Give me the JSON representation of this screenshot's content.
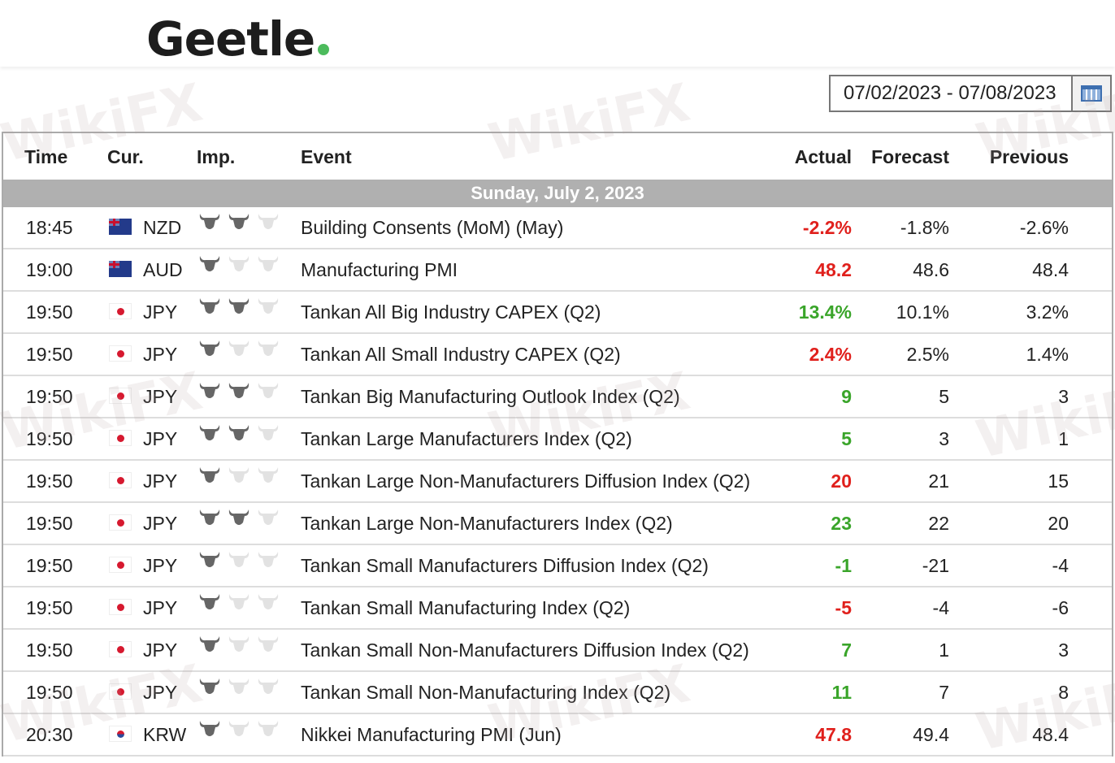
{
  "brand": {
    "name": "Geetle",
    "accent": "#4cbb5c"
  },
  "watermark": "WikiFX",
  "date_range": {
    "value": "07/02/2023 - 07/08/2023",
    "icon": "calendar-icon"
  },
  "columns": {
    "time": "Time",
    "currency": "Cur.",
    "importance": "Imp.",
    "event": "Event",
    "actual": "Actual",
    "forecast": "Forecast",
    "previous": "Previous"
  },
  "colors": {
    "negative": "#e0201c",
    "positive": "#3aa52a",
    "bull_on": "#666666",
    "bull_off": "#e2e2e2"
  },
  "day": "Sunday, July 2, 2023",
  "rows": [
    {
      "time": "18:45",
      "flag": "nz",
      "currency": "NZD",
      "importance": 2,
      "event": "Building Consents (MoM) (May)",
      "actual": "-2.2%",
      "actual_status": "negative",
      "forecast": "-1.8%",
      "previous": "-2.6%"
    },
    {
      "time": "19:00",
      "flag": "au",
      "currency": "AUD",
      "importance": 1,
      "event": "Manufacturing PMI",
      "actual": "48.2",
      "actual_status": "negative",
      "forecast": "48.6",
      "previous": "48.4"
    },
    {
      "time": "19:50",
      "flag": "jp",
      "currency": "JPY",
      "importance": 2,
      "event": "Tankan All Big Industry CAPEX (Q2)",
      "actual": "13.4%",
      "actual_status": "positive",
      "forecast": "10.1%",
      "previous": "3.2%"
    },
    {
      "time": "19:50",
      "flag": "jp",
      "currency": "JPY",
      "importance": 1,
      "event": "Tankan All Small Industry CAPEX (Q2)",
      "actual": "2.4%",
      "actual_status": "negative",
      "forecast": "2.5%",
      "previous": "1.4%"
    },
    {
      "time": "19:50",
      "flag": "jp",
      "currency": "JPY",
      "importance": 2,
      "event": "Tankan Big Manufacturing Outlook Index (Q2)",
      "actual": "9",
      "actual_status": "positive",
      "forecast": "5",
      "previous": "3"
    },
    {
      "time": "19:50",
      "flag": "jp",
      "currency": "JPY",
      "importance": 2,
      "event": "Tankan Large Manufacturers Index (Q2)",
      "actual": "5",
      "actual_status": "positive",
      "forecast": "3",
      "previous": "1"
    },
    {
      "time": "19:50",
      "flag": "jp",
      "currency": "JPY",
      "importance": 1,
      "event": "Tankan Large Non-Manufacturers Diffusion Index (Q2)",
      "actual": "20",
      "actual_status": "negative",
      "forecast": "21",
      "previous": "15"
    },
    {
      "time": "19:50",
      "flag": "jp",
      "currency": "JPY",
      "importance": 2,
      "event": "Tankan Large Non-Manufacturers Index (Q2)",
      "actual": "23",
      "actual_status": "positive",
      "forecast": "22",
      "previous": "20"
    },
    {
      "time": "19:50",
      "flag": "jp",
      "currency": "JPY",
      "importance": 1,
      "event": "Tankan Small Manufacturers Diffusion Index (Q2)",
      "actual": "-1",
      "actual_status": "positive",
      "forecast": "-21",
      "previous": "-4"
    },
    {
      "time": "19:50",
      "flag": "jp",
      "currency": "JPY",
      "importance": 1,
      "event": "Tankan Small Manufacturing Index (Q2)",
      "actual": "-5",
      "actual_status": "negative",
      "forecast": "-4",
      "previous": "-6"
    },
    {
      "time": "19:50",
      "flag": "jp",
      "currency": "JPY",
      "importance": 1,
      "event": "Tankan Small Non-Manufacturers Diffusion Index (Q2)",
      "actual": "7",
      "actual_status": "positive",
      "forecast": "1",
      "previous": "3"
    },
    {
      "time": "19:50",
      "flag": "jp",
      "currency": "JPY",
      "importance": 1,
      "event": "Tankan Small Non-Manufacturing Index (Q2)",
      "actual": "11",
      "actual_status": "positive",
      "forecast": "7",
      "previous": "8"
    },
    {
      "time": "20:30",
      "flag": "kr",
      "currency": "KRW",
      "importance": 1,
      "event": "Nikkei Manufacturing PMI (Jun)",
      "actual": "47.8",
      "actual_status": "negative",
      "forecast": "49.4",
      "previous": "48.4"
    }
  ]
}
